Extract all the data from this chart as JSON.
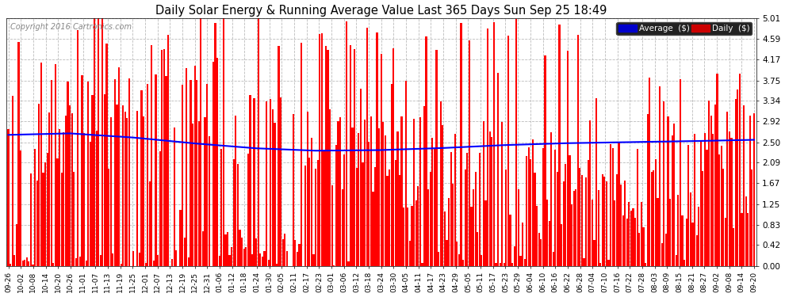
{
  "title": "Daily Solar Energy & Running Average Value Last 365 Days Sun Sep 25 18:49",
  "copyright_text": "Copyright 2016 Cartronics.com",
  "bar_color": "#ff0000",
  "avg_line_color": "#0000ff",
  "background_color": "#ffffff",
  "plot_bg_color": "#ffffff",
  "grid_color": "#bbbbbb",
  "ylim": [
    0.0,
    5.01
  ],
  "yticks": [
    0.0,
    0.42,
    0.83,
    1.25,
    1.67,
    2.09,
    2.5,
    2.92,
    3.34,
    3.75,
    4.17,
    4.59,
    5.01
  ],
  "legend_avg_label": "Average  ($)",
  "legend_daily_label": "Daily  ($)",
  "legend_avg_bg": "#0000cc",
  "legend_daily_bg": "#cc0000",
  "num_days": 365,
  "x_labels": [
    "09-26",
    "10-02",
    "10-08",
    "10-14",
    "10-20",
    "10-26",
    "11-01",
    "11-07",
    "11-13",
    "11-19",
    "11-25",
    "12-01",
    "12-07",
    "12-13",
    "12-19",
    "12-25",
    "12-31",
    "01-06",
    "01-12",
    "01-18",
    "01-24",
    "01-30",
    "02-05",
    "02-11",
    "02-17",
    "02-23",
    "03-01",
    "03-06",
    "03-12",
    "03-18",
    "03-24",
    "03-30",
    "04-05",
    "04-11",
    "04-17",
    "04-23",
    "04-29",
    "05-05",
    "05-11",
    "05-17",
    "05-23",
    "05-29",
    "06-04",
    "06-10",
    "06-16",
    "06-22",
    "06-28",
    "07-04",
    "07-10",
    "07-16",
    "07-22",
    "07-28",
    "08-03",
    "08-09",
    "08-15",
    "08-21",
    "08-27",
    "09-02",
    "09-08",
    "09-14",
    "09-20"
  ],
  "avg_curve_points": [
    [
      0,
      2.65
    ],
    [
      30,
      2.68
    ],
    [
      60,
      2.6
    ],
    [
      90,
      2.48
    ],
    [
      120,
      2.38
    ],
    [
      150,
      2.33
    ],
    [
      180,
      2.34
    ],
    [
      210,
      2.38
    ],
    [
      240,
      2.44
    ],
    [
      270,
      2.48
    ],
    [
      300,
      2.5
    ],
    [
      330,
      2.52
    ],
    [
      364,
      2.55
    ]
  ]
}
